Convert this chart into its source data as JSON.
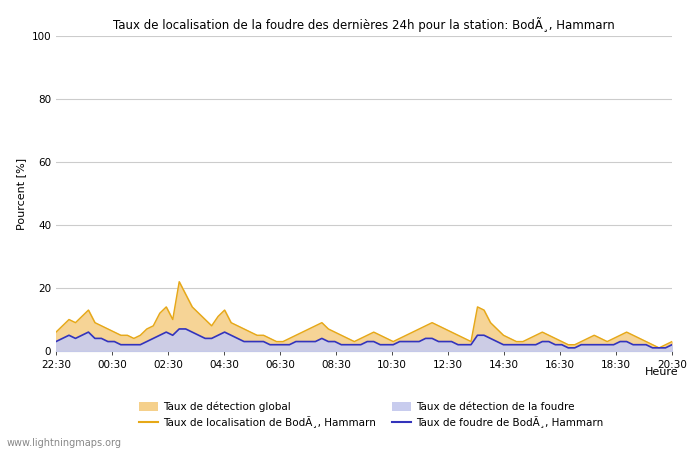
{
  "title": "Taux de localisation de la foudre des dernières 24h pour la station: BodÃ¸, Hammarn",
  "xlabel": "Heure",
  "ylabel": "Pourcent [%]",
  "ylim": [
    0,
    100
  ],
  "yticks": [
    0,
    20,
    40,
    60,
    80,
    100
  ],
  "xtick_labels": [
    "22:30",
    "00:30",
    "02:30",
    "04:30",
    "06:30",
    "08:30",
    "10:30",
    "12:30",
    "14:30",
    "16:30",
    "18:30",
    "20:30"
  ],
  "watermark": "www.lightningmaps.org",
  "legend_row1": [
    {
      "label": "Taux de détection global",
      "type": "fill",
      "color": "#f5d08b"
    },
    {
      "label": "Taux de localisation de BodÃ¸, Hammarn",
      "type": "line",
      "color": "#e6a817"
    }
  ],
  "legend_row2": [
    {
      "label": "Taux de détection de la foudre",
      "type": "fill",
      "color": "#c8ccee"
    },
    {
      "label": "Taux de foudre de BodÃ¸, Hammarn",
      "type": "line",
      "color": "#3333bb"
    }
  ],
  "n_points": 96,
  "global_detection_fill": [
    6,
    8,
    10,
    9,
    11,
    13,
    9,
    8,
    7,
    6,
    5,
    5,
    4,
    5,
    7,
    8,
    12,
    14,
    10,
    22,
    18,
    14,
    12,
    10,
    8,
    11,
    13,
    9,
    8,
    7,
    6,
    5,
    5,
    4,
    3,
    3,
    4,
    5,
    6,
    7,
    8,
    9,
    7,
    6,
    5,
    4,
    3,
    4,
    5,
    6,
    5,
    4,
    3,
    4,
    5,
    6,
    7,
    8,
    9,
    8,
    7,
    6,
    5,
    4,
    3,
    14,
    13,
    9,
    7,
    5,
    4,
    3,
    3,
    4,
    5,
    6,
    5,
    4,
    3,
    2,
    2,
    3,
    4,
    5,
    4,
    3,
    4,
    5,
    6,
    5,
    4,
    3,
    2,
    1,
    2,
    3
  ],
  "thunder_detection_fill": [
    3,
    4,
    5,
    4,
    5,
    6,
    4,
    4,
    3,
    3,
    2,
    2,
    2,
    2,
    3,
    4,
    5,
    6,
    5,
    7,
    7,
    6,
    5,
    4,
    4,
    5,
    6,
    5,
    4,
    3,
    3,
    3,
    3,
    2,
    2,
    2,
    2,
    3,
    3,
    3,
    3,
    4,
    3,
    3,
    2,
    2,
    2,
    2,
    3,
    3,
    2,
    2,
    2,
    3,
    3,
    3,
    3,
    4,
    4,
    3,
    3,
    3,
    2,
    2,
    2,
    5,
    5,
    4,
    3,
    2,
    2,
    2,
    2,
    2,
    2,
    3,
    3,
    2,
    2,
    1,
    1,
    2,
    2,
    2,
    2,
    2,
    2,
    3,
    3,
    2,
    2,
    2,
    1,
    1,
    1,
    2
  ],
  "orange_line": [
    6,
    8,
    10,
    9,
    11,
    13,
    9,
    8,
    7,
    6,
    5,
    5,
    4,
    5,
    7,
    8,
    12,
    14,
    10,
    22,
    18,
    14,
    12,
    10,
    8,
    11,
    13,
    9,
    8,
    7,
    6,
    5,
    5,
    4,
    3,
    3,
    4,
    5,
    6,
    7,
    8,
    9,
    7,
    6,
    5,
    4,
    3,
    4,
    5,
    6,
    5,
    4,
    3,
    4,
    5,
    6,
    7,
    8,
    9,
    8,
    7,
    6,
    5,
    4,
    3,
    14,
    13,
    9,
    7,
    5,
    4,
    3,
    3,
    4,
    5,
    6,
    5,
    4,
    3,
    2,
    2,
    3,
    4,
    5,
    4,
    3,
    4,
    5,
    6,
    5,
    4,
    3,
    2,
    1,
    2,
    3
  ],
  "blue_line": [
    3,
    4,
    5,
    4,
    5,
    6,
    4,
    4,
    3,
    3,
    2,
    2,
    2,
    2,
    3,
    4,
    5,
    6,
    5,
    7,
    7,
    6,
    5,
    4,
    4,
    5,
    6,
    5,
    4,
    3,
    3,
    3,
    3,
    2,
    2,
    2,
    2,
    3,
    3,
    3,
    3,
    4,
    3,
    3,
    2,
    2,
    2,
    2,
    3,
    3,
    2,
    2,
    2,
    3,
    3,
    3,
    3,
    4,
    4,
    3,
    3,
    3,
    2,
    2,
    2,
    5,
    5,
    4,
    3,
    2,
    2,
    2,
    2,
    2,
    2,
    3,
    3,
    2,
    2,
    1,
    1,
    2,
    2,
    2,
    2,
    2,
    2,
    3,
    3,
    2,
    2,
    2,
    1,
    1,
    1,
    2
  ],
  "background_color": "#ffffff",
  "grid_color": "#cccccc",
  "fill_orange_color": "#f5d08b",
  "fill_blue_color": "#c8ccee",
  "line_orange_color": "#e6a817",
  "line_blue_color": "#3333bb"
}
